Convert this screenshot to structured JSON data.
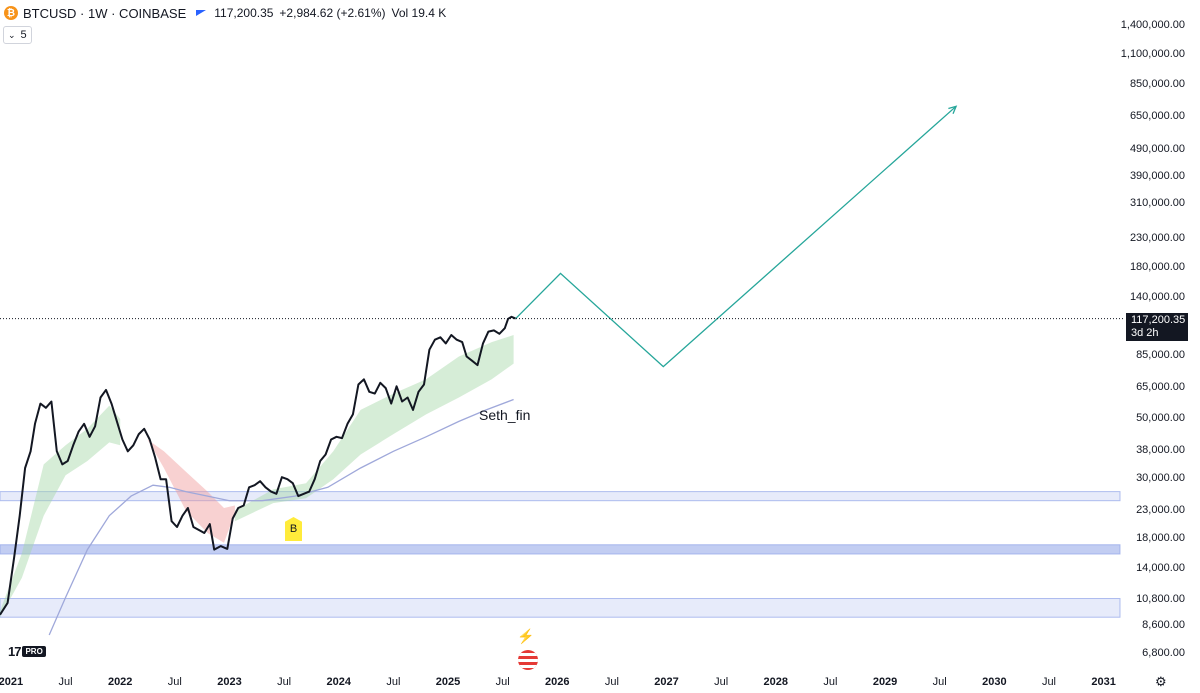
{
  "header": {
    "symbol": "BTCUSD · 1W · COINBASE",
    "price": "117,200.35",
    "change": "+2,984.62 (+2.61%)",
    "volume": "Vol 19.4 K",
    "coin_icon": "bitcoin-icon",
    "flag_icon": "flag-icon"
  },
  "indicator_toggle": {
    "value": "5",
    "icon": "chevron-down-icon"
  },
  "price_tag": {
    "price": "117,200.35",
    "countdown": "3d 2h"
  },
  "signal_label": "B",
  "watermark": "Seth_fin",
  "branding": {
    "pro_label": "PRO"
  },
  "colors": {
    "price_line": "#131722",
    "projection": "#26a69a",
    "ribbon_up": "#a5d6a7",
    "ribbon_down": "#ef9a9a",
    "ma_line": "#9fa8da",
    "zone": "#90a4e8",
    "buy_signal": "#ffeb3b"
  },
  "chart_data": {
    "type": "line",
    "y_scale": "log",
    "y_ticks": [
      "1,400,000.00",
      "1,100,000.00",
      "850,000.00",
      "650,000.00",
      "490,000.00",
      "390,000.00",
      "310,000.00",
      "230,000.00",
      "180,000.00",
      "140,000.00",
      "85,000.00",
      "65,000.00",
      "50,000.00",
      "38,000.00",
      "30,000.00",
      "23,000.00",
      "18,000.00",
      "14,000.00",
      "10,800.00",
      "8,600.00",
      "6,800.00"
    ],
    "x_ticks": [
      {
        "label": "2021",
        "year": true
      },
      {
        "label": "Jul",
        "year": false
      },
      {
        "label": "2022",
        "year": true
      },
      {
        "label": "Jul",
        "year": false
      },
      {
        "label": "2023",
        "year": true
      },
      {
        "label": "Jul",
        "year": false
      },
      {
        "label": "2024",
        "year": true
      },
      {
        "label": "Jul",
        "year": false
      },
      {
        "label": "2025",
        "year": true
      },
      {
        "label": "Jul",
        "year": false
      },
      {
        "label": "2026",
        "year": true
      },
      {
        "label": "Jul",
        "year": false
      },
      {
        "label": "2027",
        "year": true
      },
      {
        "label": "Jul",
        "year": false
      },
      {
        "label": "2028",
        "year": true
      },
      {
        "label": "Jul",
        "year": false
      },
      {
        "label": "2029",
        "year": true
      },
      {
        "label": "Jul",
        "year": false
      },
      {
        "label": "2030",
        "year": true
      },
      {
        "label": "Jul",
        "year": false
      },
      {
        "label": "2031",
        "year": true
      }
    ],
    "x_range": [
      2020.9,
      2031.15
    ],
    "y_range": [
      6200,
      1750000
    ],
    "price": [
      [
        2020.9,
        9500
      ],
      [
        2020.97,
        10500
      ],
      [
        2021.03,
        15500
      ],
      [
        2021.08,
        22000
      ],
      [
        2021.13,
        33000
      ],
      [
        2021.18,
        38000
      ],
      [
        2021.22,
        48000
      ],
      [
        2021.27,
        57000
      ],
      [
        2021.32,
        55000
      ],
      [
        2021.37,
        58000
      ],
      [
        2021.42,
        38000
      ],
      [
        2021.47,
        34000
      ],
      [
        2021.52,
        35000
      ],
      [
        2021.57,
        40000
      ],
      [
        2021.62,
        45000
      ],
      [
        2021.67,
        48000
      ],
      [
        2021.72,
        43000
      ],
      [
        2021.77,
        47000
      ],
      [
        2021.82,
        60000
      ],
      [
        2021.87,
        64000
      ],
      [
        2021.92,
        57000
      ],
      [
        2021.97,
        49000
      ],
      [
        2022.02,
        42000
      ],
      [
        2022.07,
        38000
      ],
      [
        2022.12,
        40000
      ],
      [
        2022.17,
        44000
      ],
      [
        2022.22,
        46000
      ],
      [
        2022.27,
        42000
      ],
      [
        2022.32,
        36000
      ],
      [
        2022.37,
        30000
      ],
      [
        2022.42,
        30000
      ],
      [
        2022.47,
        21000
      ],
      [
        2022.52,
        20000
      ],
      [
        2022.57,
        22000
      ],
      [
        2022.62,
        23500
      ],
      [
        2022.67,
        20000
      ],
      [
        2022.72,
        19500
      ],
      [
        2022.77,
        19000
      ],
      [
        2022.82,
        20500
      ],
      [
        2022.86,
        16500
      ],
      [
        2022.92,
        17000
      ],
      [
        2022.98,
        16600
      ],
      [
        2023.03,
        21500
      ],
      [
        2023.08,
        23500
      ],
      [
        2023.13,
        24000
      ],
      [
        2023.18,
        28000
      ],
      [
        2023.23,
        28500
      ],
      [
        2023.28,
        29500
      ],
      [
        2023.33,
        28000
      ],
      [
        2023.38,
        27000
      ],
      [
        2023.43,
        26500
      ],
      [
        2023.48,
        30500
      ],
      [
        2023.53,
        30000
      ],
      [
        2023.58,
        29000
      ],
      [
        2023.63,
        26000
      ],
      [
        2023.68,
        26500
      ],
      [
        2023.73,
        27000
      ],
      [
        2023.78,
        30000
      ],
      [
        2023.83,
        35000
      ],
      [
        2023.88,
        37000
      ],
      [
        2023.93,
        42000
      ],
      [
        2023.98,
        43000
      ],
      [
        2024.03,
        42500
      ],
      [
        2024.08,
        48000
      ],
      [
        2024.13,
        52000
      ],
      [
        2024.18,
        67000
      ],
      [
        2024.23,
        70000
      ],
      [
        2024.28,
        63000
      ],
      [
        2024.33,
        62000
      ],
      [
        2024.38,
        68000
      ],
      [
        2024.43,
        65000
      ],
      [
        2024.48,
        57000
      ],
      [
        2024.53,
        66000
      ],
      [
        2024.58,
        58000
      ],
      [
        2024.63,
        60000
      ],
      [
        2024.68,
        54000
      ],
      [
        2024.73,
        63000
      ],
      [
        2024.78,
        67000
      ],
      [
        2024.83,
        90000
      ],
      [
        2024.88,
        98000
      ],
      [
        2024.93,
        100000
      ],
      [
        2024.98,
        95000
      ],
      [
        2025.03,
        102000
      ],
      [
        2025.08,
        98000
      ],
      [
        2025.13,
        96000
      ],
      [
        2025.17,
        85000
      ],
      [
        2025.22,
        82000
      ],
      [
        2025.27,
        79000
      ],
      [
        2025.32,
        95000
      ],
      [
        2025.37,
        105000
      ],
      [
        2025.42,
        106000
      ],
      [
        2025.47,
        103000
      ],
      [
        2025.52,
        108000
      ],
      [
        2025.55,
        117000
      ],
      [
        2025.58,
        119000
      ],
      [
        2025.62,
        117200
      ]
    ],
    "projection": [
      [
        2025.62,
        117200
      ],
      [
        2026.03,
        172000
      ],
      [
        2026.97,
        78000
      ],
      [
        2029.65,
        710000
      ]
    ],
    "moving_average": [
      [
        2021.35,
        8000
      ],
      [
        2021.5,
        11000
      ],
      [
        2021.7,
        16500
      ],
      [
        2021.9,
        22000
      ],
      [
        2022.1,
        26000
      ],
      [
        2022.3,
        28500
      ],
      [
        2022.45,
        28000
      ],
      [
        2022.6,
        27000
      ],
      [
        2022.8,
        26000
      ],
      [
        2023.0,
        25000
      ],
      [
        2023.3,
        25000
      ],
      [
        2023.6,
        26000
      ],
      [
        2023.9,
        28000
      ],
      [
        2024.2,
        33000
      ],
      [
        2024.5,
        38000
      ],
      [
        2024.8,
        43000
      ],
      [
        2025.1,
        49000
      ],
      [
        2025.35,
        54000
      ],
      [
        2025.6,
        59000
      ]
    ],
    "ribbon": [
      {
        "trend": "up",
        "points": [
          [
            2020.9,
            9300,
            9800
          ],
          [
            2021.1,
            13000,
            16000
          ],
          [
            2021.3,
            22000,
            34000
          ],
          [
            2021.5,
            31000,
            40000
          ],
          [
            2021.7,
            35000,
            46000
          ],
          [
            2021.9,
            41000,
            56000
          ],
          [
            2022.0,
            40000,
            50000
          ]
        ]
      },
      {
        "trend": "down",
        "points": [
          [
            2022.25,
            42000,
            42000
          ],
          [
            2022.4,
            33000,
            38000
          ],
          [
            2022.6,
            23000,
            32000
          ],
          [
            2022.8,
            19000,
            27000
          ],
          [
            2022.95,
            17500,
            23500
          ],
          [
            2023.05,
            22500,
            24000
          ]
        ]
      },
      {
        "trend": "up",
        "points": [
          [
            2023.05,
            21000,
            23000
          ],
          [
            2023.4,
            24500,
            27500
          ],
          [
            2023.7,
            25500,
            29000
          ],
          [
            2023.95,
            30000,
            38000
          ],
          [
            2024.2,
            37000,
            54000
          ],
          [
            2024.5,
            44000,
            62000
          ],
          [
            2024.8,
            52000,
            70000
          ],
          [
            2025.1,
            60000,
            85000
          ],
          [
            2025.4,
            70000,
            96000
          ],
          [
            2025.6,
            80000,
            102000
          ]
        ]
      }
    ],
    "zones": [
      {
        "from": 25000,
        "to": 27000
      },
      {
        "from": 15900,
        "to": 17200
      },
      {
        "from": 9300,
        "to": 10900
      }
    ],
    "current_price": 117200.35
  }
}
